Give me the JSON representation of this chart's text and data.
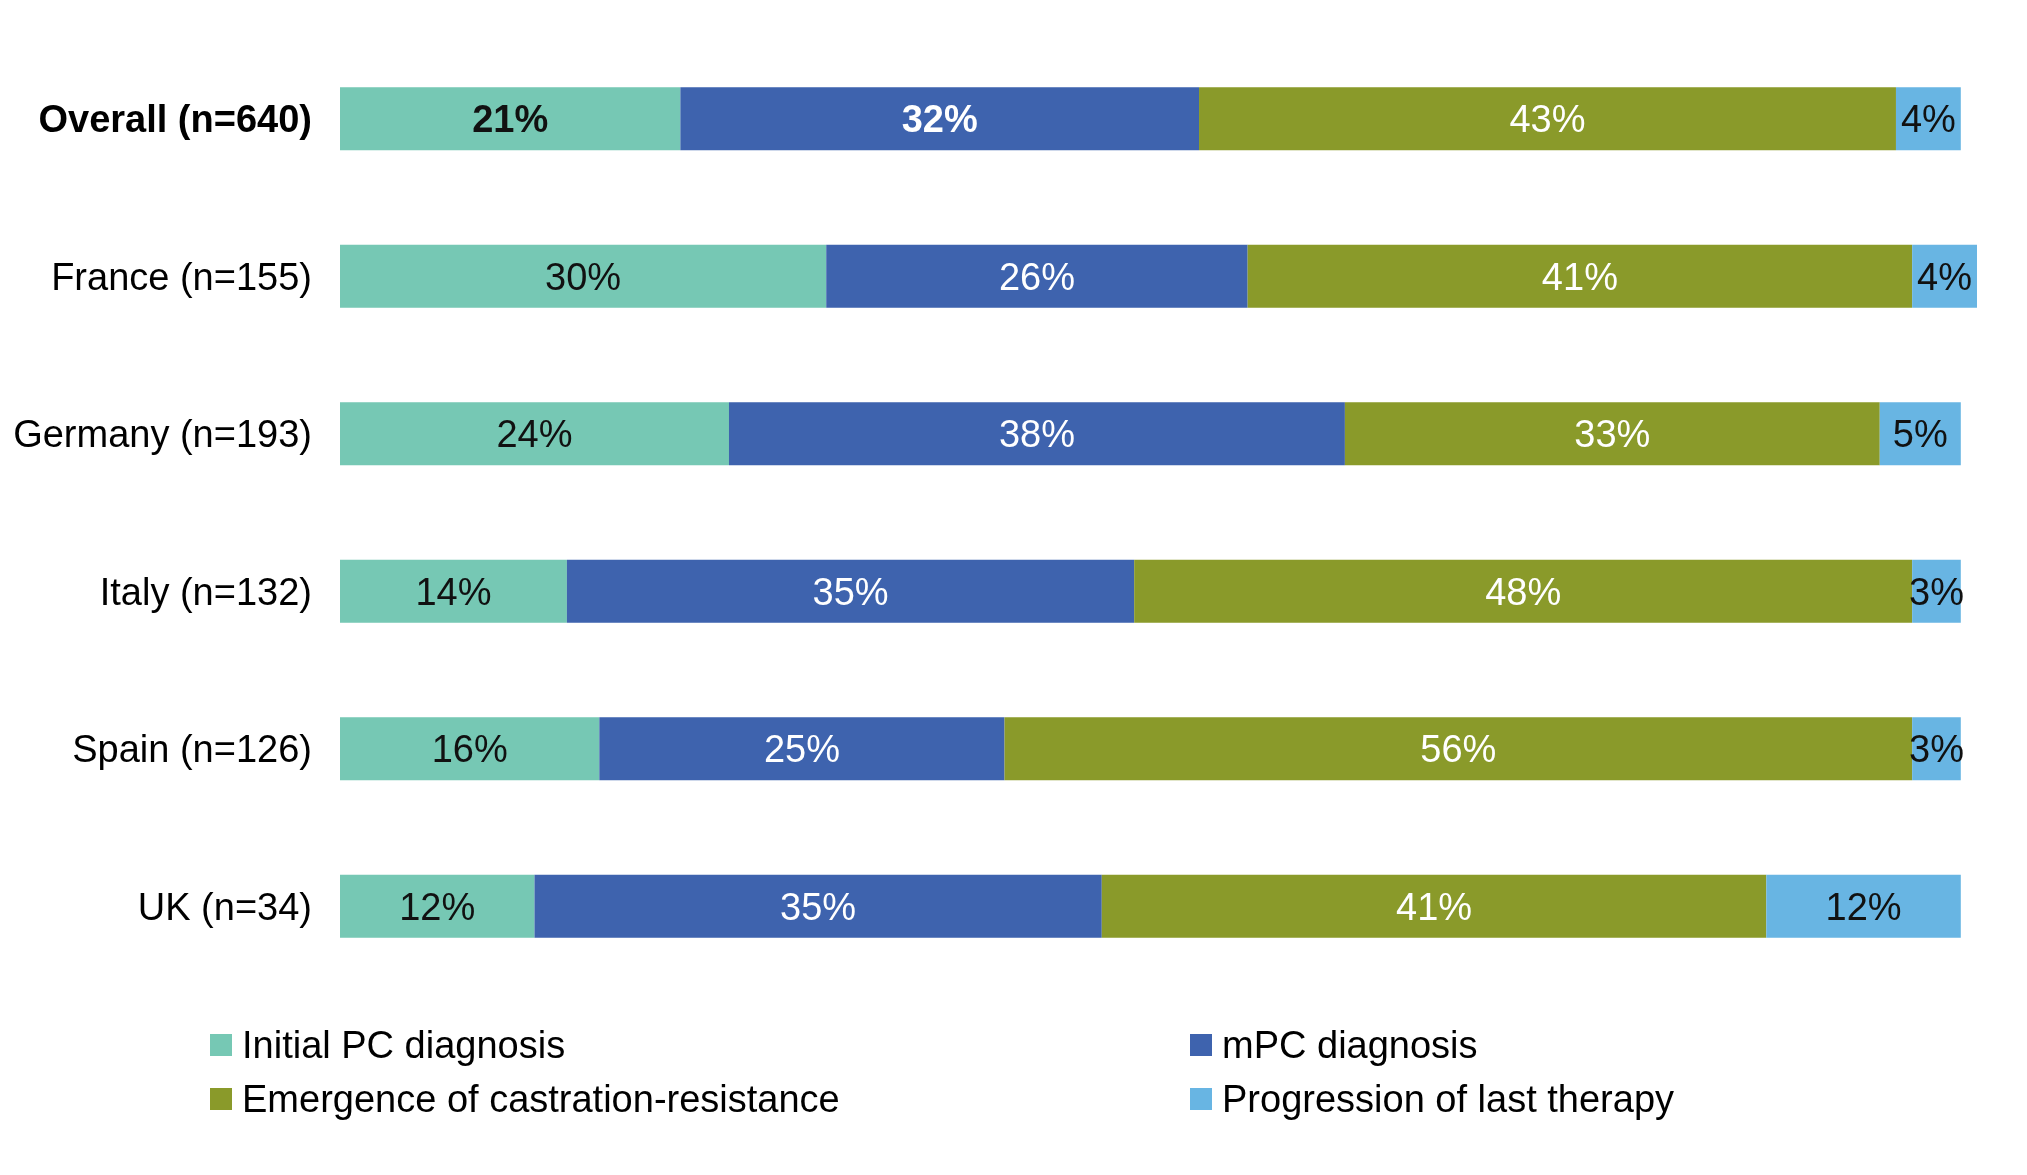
{
  "chart_data": {
    "type": "bar",
    "orientation": "horizontal",
    "stacked": true,
    "legend": "bottom",
    "grid": false,
    "categories": [
      "Overall  (n=640)",
      "France (n=155)",
      "Germany (n=193)",
      "Italy (n=132)",
      "Spain (n=126)",
      "UK (n=34)"
    ],
    "series": [
      {
        "name": "Initial PC diagnosis",
        "color": "#76c8b4",
        "values": [
          21,
          30,
          24,
          14,
          16,
          12
        ],
        "value_labels": [
          "21%",
          "30%",
          "24%",
          "14%",
          "16%",
          "12%"
        ]
      },
      {
        "name": "mPC diagnosis",
        "color": "#3e63ae",
        "values": [
          32,
          26,
          38,
          35,
          25,
          35
        ],
        "value_labels": [
          "32%",
          "26%",
          "38%",
          "35%",
          "25%",
          "35%"
        ]
      },
      {
        "name": "Emergence of castration-resistance",
        "color": "#8a9a2a",
        "values": [
          43,
          41,
          33,
          48,
          56,
          41
        ],
        "value_labels": [
          "43%",
          "41%",
          "33%",
          "48%",
          "56%",
          "41%"
        ]
      },
      {
        "name": "Progression of last therapy",
        "color": "#68b5e3",
        "values": [
          4,
          4,
          5,
          3,
          3,
          12
        ],
        "value_labels": [
          "4%",
          "4%",
          "5%",
          "3%",
          "3%",
          "12%"
        ]
      }
    ]
  }
}
